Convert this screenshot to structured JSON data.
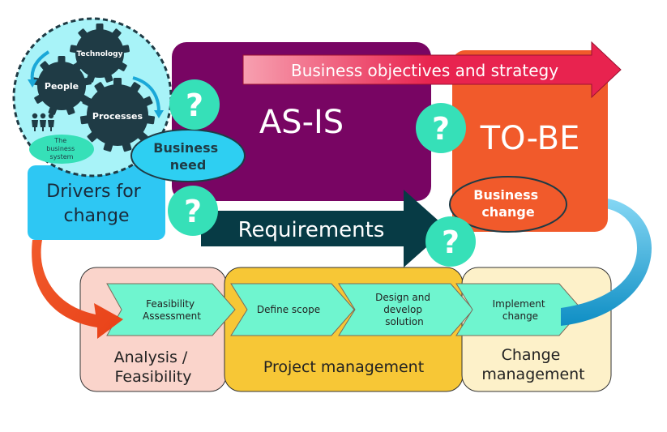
{
  "business_system": {
    "gears": [
      "Technology",
      "People",
      "Processes"
    ],
    "caption": [
      "The",
      "business",
      "system"
    ]
  },
  "business_need": [
    "Business",
    "need"
  ],
  "drivers": [
    "Drivers for",
    "change"
  ],
  "as_is": "AS-IS",
  "to_be": "TO-BE",
  "objectives": "Business objectives and strategy",
  "requirements": "Requirements",
  "business_change": [
    "Business",
    "change"
  ],
  "question_mark": "?",
  "phases": [
    {
      "label": [
        "Analysis /",
        "Feasibility"
      ]
    },
    {
      "label": [
        "Project management"
      ]
    },
    {
      "label": [
        "Change",
        "management"
      ]
    }
  ],
  "steps": [
    {
      "label": [
        "Feasibility",
        "Assessment"
      ]
    },
    {
      "label": [
        "Define scope"
      ]
    },
    {
      "label": [
        "Design and",
        "develop",
        "solution"
      ]
    },
    {
      "label": [
        "Implement",
        "change"
      ]
    }
  ],
  "colors": {
    "as_is": "#780563",
    "to_be": "#F15A2B",
    "objectives_arrow": "#E8234F",
    "requirements_arrow": "#073B45",
    "drivers": "#2EC7F3",
    "business_change": "#F15A2B",
    "question": "#36E0B8",
    "business_need": "#2ECFF2",
    "gear": "#1F3B45",
    "system_circle": "#A8F3F8",
    "analysis_phase": "#FAD4CB",
    "project_phase": "#F7C736",
    "change_phase": "#FDF1C9",
    "step_chevron": "#6FF5CF",
    "orange_curve": "#F15A2B",
    "blue_curve": "#1AA8D8"
  }
}
